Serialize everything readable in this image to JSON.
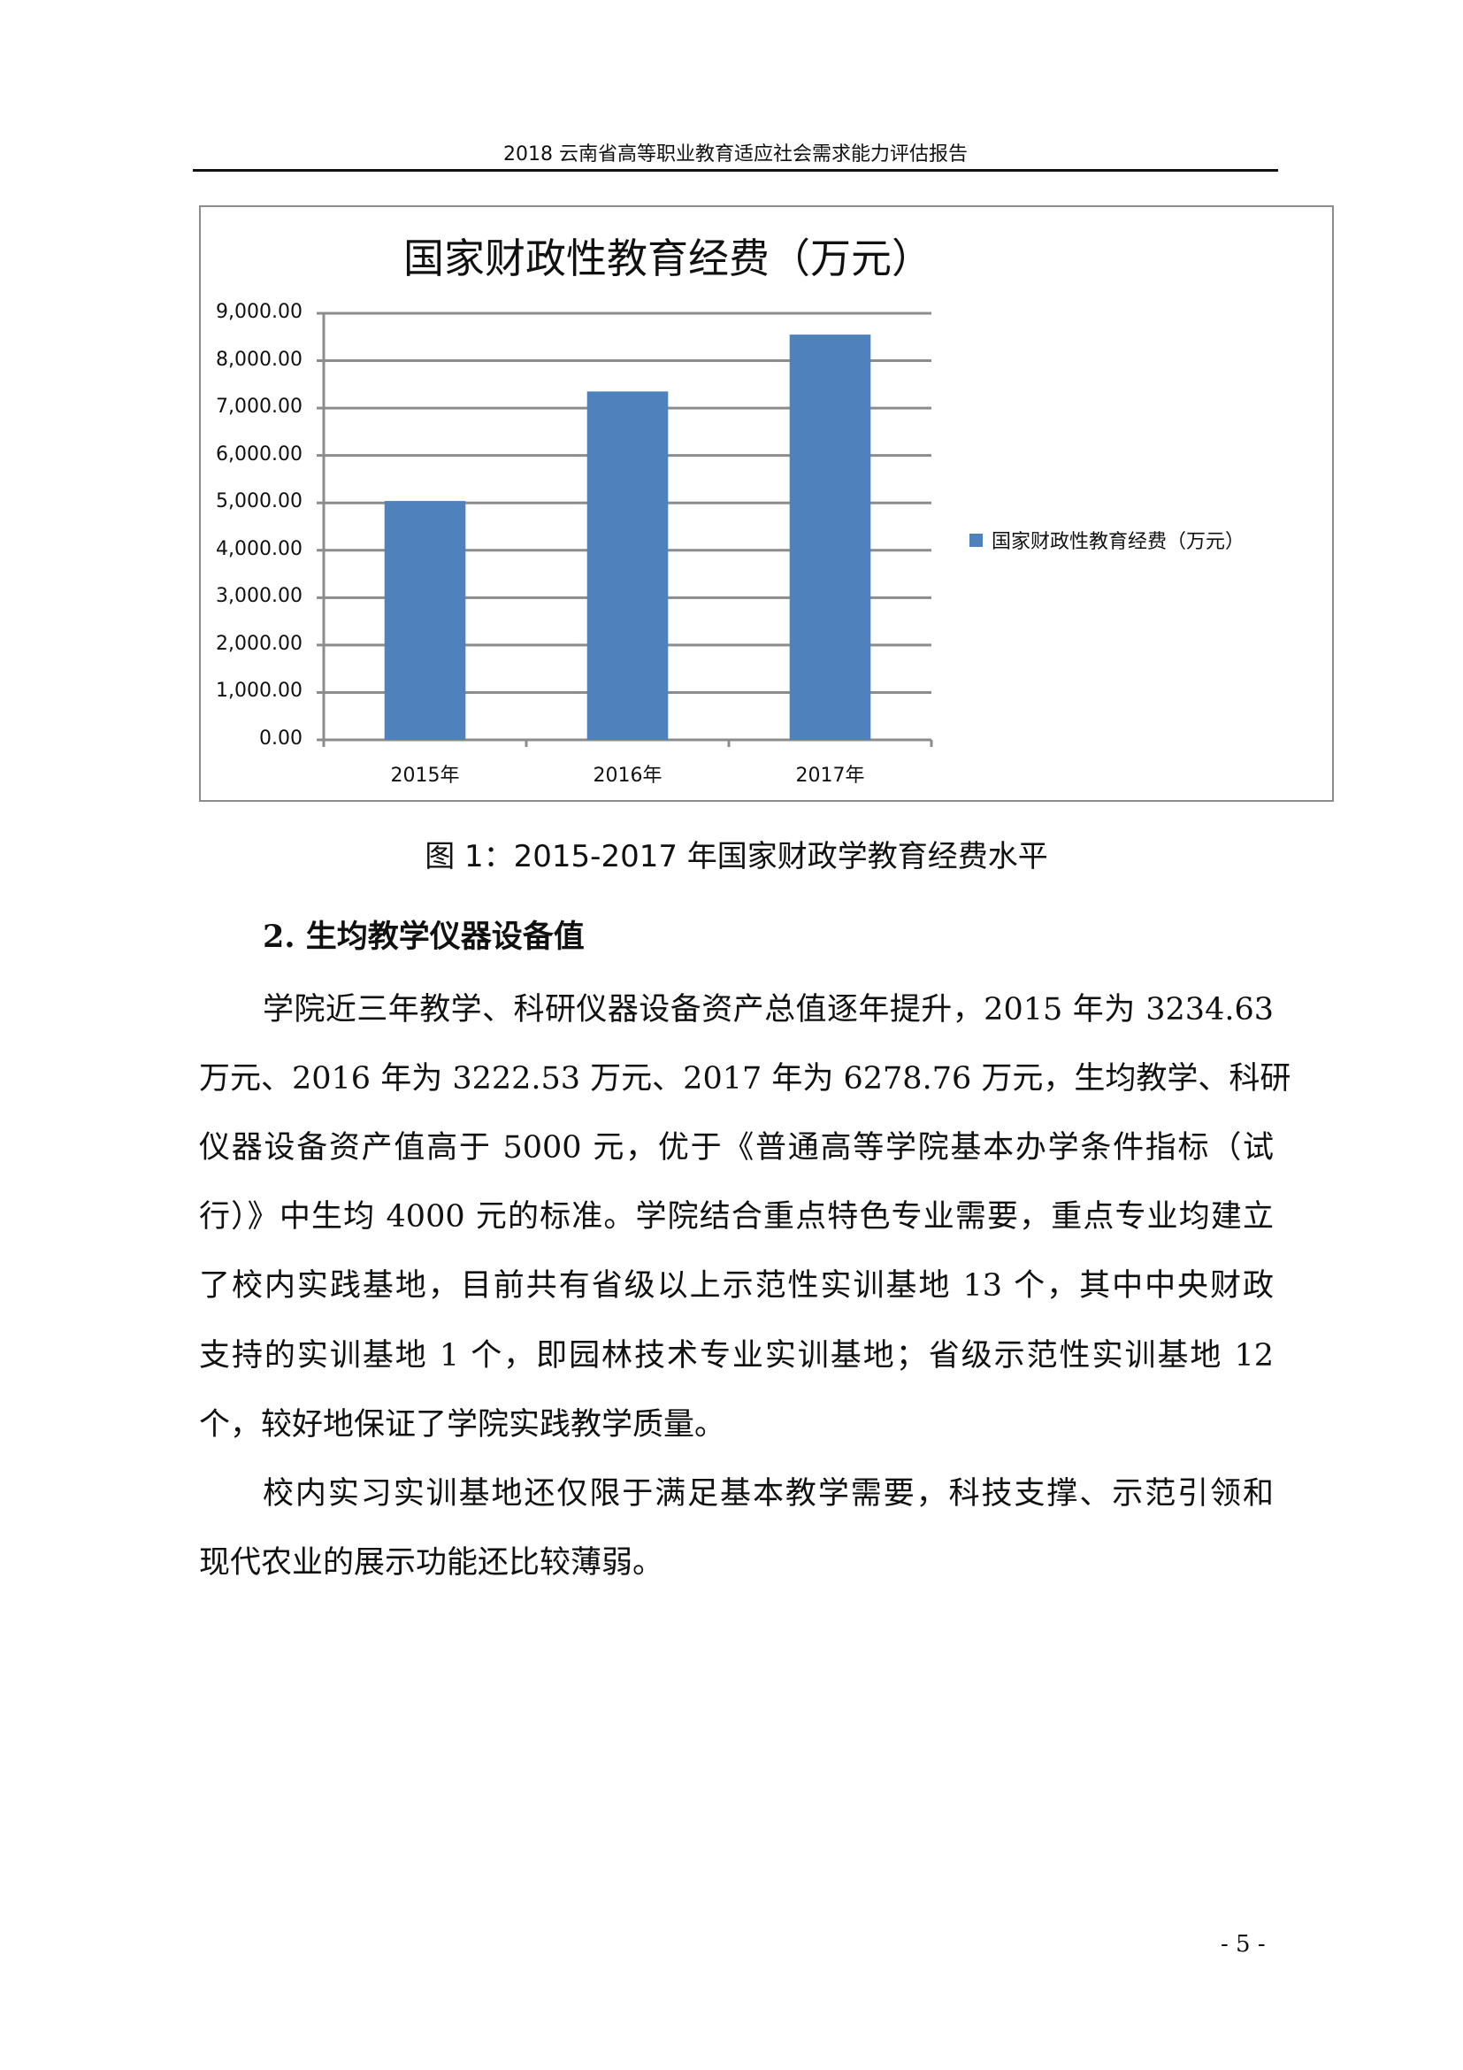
{
  "header": {
    "title": "2018 云南省高等职业教育适应社会需求能力评估报告"
  },
  "chart_data": {
    "type": "bar",
    "title": "国家财政性教育经费（万元）",
    "categories": [
      "2015年",
      "2016年",
      "2017年"
    ],
    "series": [
      {
        "name": "国家财政性教育经费（万元）",
        "values": [
          5040,
          7350,
          8550
        ],
        "color": "#4f81bd"
      }
    ],
    "yticks": [
      "0.00",
      "1,000.00",
      "2,000.00",
      "3,000.00",
      "4,000.00",
      "5,000.00",
      "6,000.00",
      "7,000.00",
      "8,000.00",
      "9,000.00"
    ],
    "ylim": [
      0,
      9000
    ],
    "grid": true,
    "legend": "right"
  },
  "caption": "图 1：2015-2017 年国家财政学教育经费水平",
  "section": {
    "heading": "2. 生均教学仪器设备值",
    "paragraphs": [
      [
        "学院近三年教学、科研仪器设备资产总值逐年提升，2015 年为 3234.63",
        "万元、2016 年为 3222.53 万元、2017 年为 6278.76 万元，生均教学、科研",
        "仪器设备资产值高于 5000 元，优于《普通高等学院基本办学条件指标（试",
        "行）》中生均 4000 元的标准。学院结合重点特色专业需要，重点专业均建立",
        "了校内实践基地，目前共有省级以上示范性实训基地 13 个，其中中央财政",
        "支持的实训基地 1 个，即园林技术专业实训基地；省级示范性实训基地 12",
        "个，较好地保证了学院实践教学质量。"
      ],
      [
        "校内实习实训基地还仅限于满足基本教学需要，科技支撑、示范引领和",
        "现代农业的展示功能还比较薄弱。"
      ]
    ]
  },
  "page_number": "- 5 -"
}
